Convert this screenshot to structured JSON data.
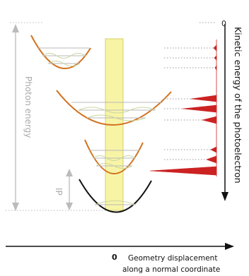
{
  "labels": {
    "photon_energy": "Photon energy",
    "ip": "IP",
    "kinetic_energy": "Kinetic energy of the photoelectron",
    "zero_top": "0",
    "zero_axis": "0",
    "x_axis_line1": "Geometry displacement",
    "x_axis_line2": "along a normal coordinate"
  },
  "colors": {
    "ground_state_curve": "#111111",
    "ionic_state_curves": "#d2711e",
    "vibrational_levels": "#b8b8b8",
    "wavefunctions": "#c9d6a0",
    "franck_condon_band": "#f7f4a6",
    "franck_condon_band_edge": "#c8c25a",
    "spectrum_peaks": "#cc2222",
    "guide_lines": "#bbbbbb",
    "axis": "#111111"
  }
}
